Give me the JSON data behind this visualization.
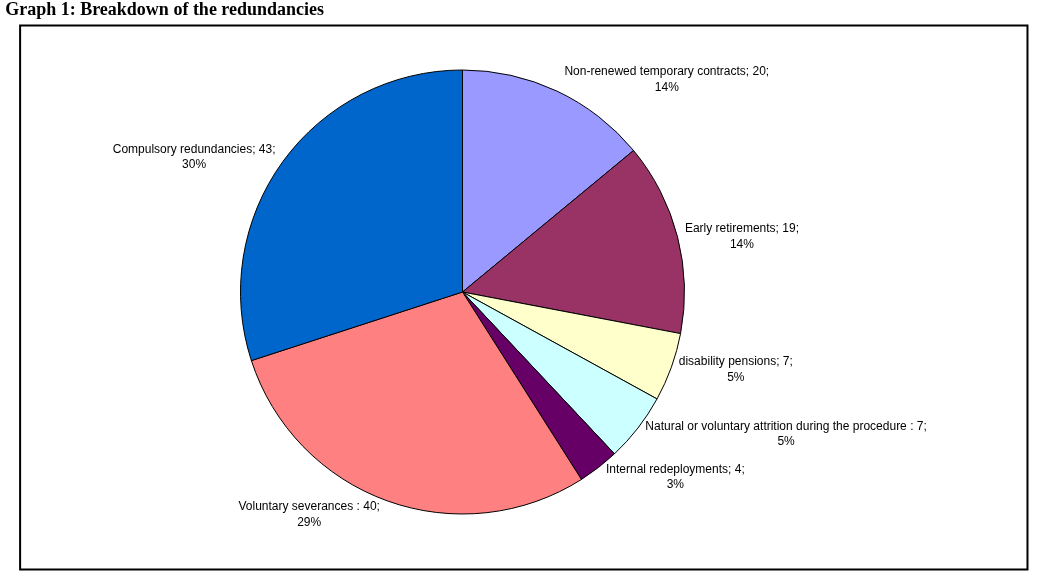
{
  "chart_data": {
    "type": "pie",
    "title": "Graph 1: Breakdown of the redundancies",
    "categories": [
      "Non-renewed temporary contracts",
      "Early retirements",
      "disability pensions",
      "Natural or voluntary attrition during the procedure",
      "Internal redeployments",
      "Voluntary severances",
      "Compulsory redundancies"
    ],
    "values": [
      14,
      14,
      5,
      5,
      3,
      29,
      30
    ],
    "colors": [
      "#9999ff",
      "#993366",
      "#ffffcc",
      "#ccffff",
      "#660066",
      "#ff8080",
      "#0066cc"
    ],
    "value_labels": [
      "; 20;\n14%",
      "; 19;\n14%",
      "; 7;\n5%",
      " : 7;\n5%",
      "; 4;\n3%",
      " : 40;\n29%",
      "; 43;\n30%"
    ],
    "legend": false
  }
}
